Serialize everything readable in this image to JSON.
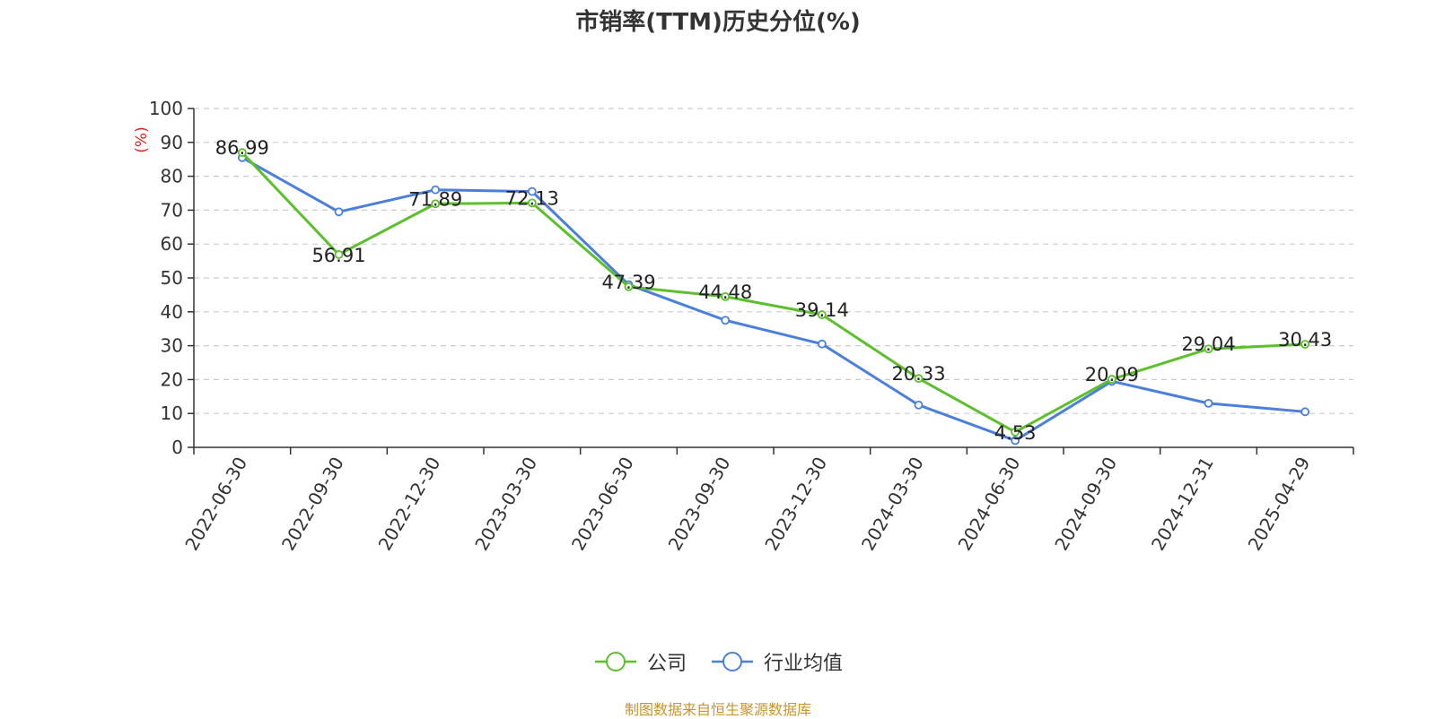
{
  "chart_data": {
    "type": "line",
    "title": "市销率(TTM)历史分位(%)",
    "ylabel": "(%)",
    "ylim": [
      0,
      100
    ],
    "yticks": [
      0,
      10,
      20,
      30,
      40,
      50,
      60,
      70,
      80,
      90,
      100
    ],
    "categories": [
      "2022-06-30",
      "2022-09-30",
      "2022-12-30",
      "2023-03-30",
      "2023-06-30",
      "2023-09-30",
      "2023-12-30",
      "2024-03-30",
      "2024-06-30",
      "2024-09-30",
      "2024-12-31",
      "2025-04-29"
    ],
    "grid": true,
    "legend_position": "bottom-center",
    "series": [
      {
        "name": "公司",
        "color": "#5cc02c",
        "values": [
          86.99,
          56.91,
          71.89,
          72.13,
          47.39,
          44.48,
          39.14,
          20.33,
          4.53,
          20.09,
          29.04,
          30.43
        ],
        "show_labels": true
      },
      {
        "name": "行业均值",
        "color": "#4a7fdc",
        "values": [
          85.5,
          69.5,
          76.0,
          75.5,
          48.0,
          37.5,
          30.5,
          12.5,
          2.0,
          19.5,
          13.0,
          10.5
        ],
        "show_labels": false
      }
    ]
  },
  "source": "制图数据来自恒生聚源数据库"
}
